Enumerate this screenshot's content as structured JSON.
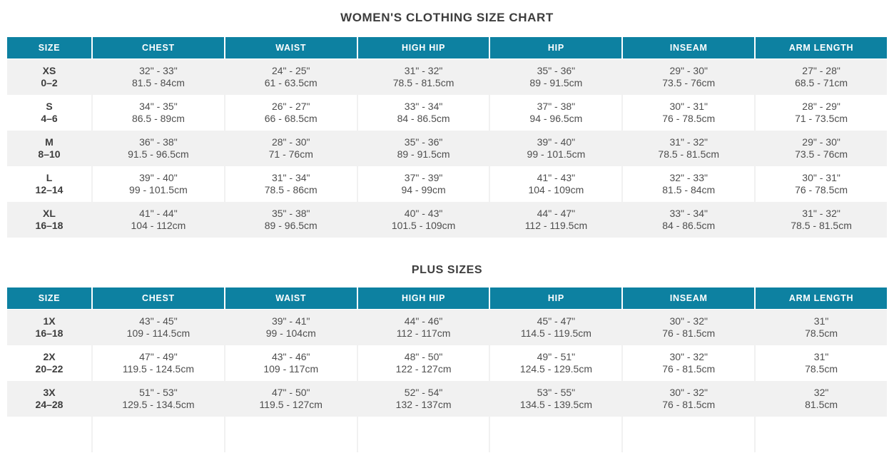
{
  "colors": {
    "header_bg": "#0d81a1",
    "header_text": "#ffffff",
    "alt_row_bg": "#f1f1f1",
    "title_text": "#3d3d3d",
    "cell_text": "#4e4e4e"
  },
  "chart_data": [
    {
      "type": "table",
      "title": "WOMEN'S CLOTHING SIZE CHART",
      "columns": [
        "SIZE",
        "CHEST",
        "WAIST",
        "HIGH HIP",
        "HIP",
        "INSEAM",
        "ARM LENGTH"
      ],
      "first_row_shaded": true,
      "trailing_empty_row": false,
      "rows": [
        {
          "size_label": "XS",
          "size_range": "0–2",
          "measurements": [
            {
              "inches": "32\" - 33\"",
              "cm": "81.5 - 84cm"
            },
            {
              "inches": "24\" - 25\"",
              "cm": "61 - 63.5cm"
            },
            {
              "inches": "31\" - 32\"",
              "cm": "78.5 - 81.5cm"
            },
            {
              "inches": "35\" - 36\"",
              "cm": "89 - 91.5cm"
            },
            {
              "inches": "29\" - 30\"",
              "cm": "73.5 - 76cm"
            },
            {
              "inches": "27\" - 28\"",
              "cm": "68.5 - 71cm"
            }
          ]
        },
        {
          "size_label": "S",
          "size_range": "4–6",
          "measurements": [
            {
              "inches": "34\" - 35\"",
              "cm": "86.5 - 89cm"
            },
            {
              "inches": "26\" - 27\"",
              "cm": "66 - 68.5cm"
            },
            {
              "inches": "33\" - 34\"",
              "cm": "84 - 86.5cm"
            },
            {
              "inches": "37\" - 38\"",
              "cm": "94 - 96.5cm"
            },
            {
              "inches": "30\" - 31\"",
              "cm": "76 - 78.5cm"
            },
            {
              "inches": "28\" - 29\"",
              "cm": "71 - 73.5cm"
            }
          ]
        },
        {
          "size_label": "M",
          "size_range": "8–10",
          "measurements": [
            {
              "inches": "36\" - 38\"",
              "cm": "91.5 - 96.5cm"
            },
            {
              "inches": "28\" - 30\"",
              "cm": "71 - 76cm"
            },
            {
              "inches": "35\" - 36\"",
              "cm": "89 - 91.5cm"
            },
            {
              "inches": "39\" - 40\"",
              "cm": "99 - 101.5cm"
            },
            {
              "inches": "31\" - 32\"",
              "cm": "78.5 - 81.5cm"
            },
            {
              "inches": "29\" - 30\"",
              "cm": "73.5 - 76cm"
            }
          ]
        },
        {
          "size_label": "L",
          "size_range": "12–14",
          "measurements": [
            {
              "inches": "39\" - 40\"",
              "cm": "99 - 101.5cm"
            },
            {
              "inches": "31\" - 34\"",
              "cm": "78.5 - 86cm"
            },
            {
              "inches": "37\" - 39\"",
              "cm": "94 - 99cm"
            },
            {
              "inches": "41\" - 43\"",
              "cm": "104 - 109cm"
            },
            {
              "inches": "32\" - 33\"",
              "cm": "81.5 - 84cm"
            },
            {
              "inches": "30\" - 31\"",
              "cm": "76 - 78.5cm"
            }
          ]
        },
        {
          "size_label": "XL",
          "size_range": "16–18",
          "measurements": [
            {
              "inches": "41\" - 44\"",
              "cm": "104 - 112cm"
            },
            {
              "inches": "35\" - 38\"",
              "cm": "89 - 96.5cm"
            },
            {
              "inches": "40\" - 43\"",
              "cm": "101.5 - 109cm"
            },
            {
              "inches": "44\" - 47\"",
              "cm": "112 - 119.5cm"
            },
            {
              "inches": "33\" - 34\"",
              "cm": "84 - 86.5cm"
            },
            {
              "inches": "31\" - 32\"",
              "cm": "78.5 - 81.5cm"
            }
          ]
        }
      ]
    },
    {
      "type": "table",
      "title": "PLUS SIZES",
      "columns": [
        "SIZE",
        "CHEST",
        "WAIST",
        "HIGH HIP",
        "HIP",
        "INSEAM",
        "ARM LENGTH"
      ],
      "first_row_shaded": true,
      "trailing_empty_row": true,
      "rows": [
        {
          "size_label": "1X",
          "size_range": "16–18",
          "measurements": [
            {
              "inches": "43\" - 45\"",
              "cm": "109 - 114.5cm"
            },
            {
              "inches": "39\" - 41\"",
              "cm": "99 - 104cm"
            },
            {
              "inches": "44\" - 46\"",
              "cm": "112 - 117cm"
            },
            {
              "inches": "45\" - 47\"",
              "cm": "114.5 - 119.5cm"
            },
            {
              "inches": "30\" - 32\"",
              "cm": "76 - 81.5cm"
            },
            {
              "inches": "31\"",
              "cm": "78.5cm"
            }
          ]
        },
        {
          "size_label": "2X",
          "size_range": "20–22",
          "measurements": [
            {
              "inches": "47\" - 49\"",
              "cm": "119.5 - 124.5cm"
            },
            {
              "inches": "43\" - 46\"",
              "cm": "109 - 117cm"
            },
            {
              "inches": "48\" - 50\"",
              "cm": "122 - 127cm"
            },
            {
              "inches": "49\" - 51\"",
              "cm": "124.5 - 129.5cm"
            },
            {
              "inches": "30\" - 32\"",
              "cm": "76 - 81.5cm"
            },
            {
              "inches": "31\"",
              "cm": "78.5cm"
            }
          ]
        },
        {
          "size_label": "3X",
          "size_range": "24–28",
          "measurements": [
            {
              "inches": "51\" - 53\"",
              "cm": "129.5 - 134.5cm"
            },
            {
              "inches": "47\" - 50\"",
              "cm": "119.5 - 127cm"
            },
            {
              "inches": "52\" - 54\"",
              "cm": "132 - 137cm"
            },
            {
              "inches": "53\" - 55\"",
              "cm": "134.5 - 139.5cm"
            },
            {
              "inches": "30\" - 32\"",
              "cm": "76 - 81.5cm"
            },
            {
              "inches": "32\"",
              "cm": "81.5cm"
            }
          ]
        }
      ]
    }
  ]
}
